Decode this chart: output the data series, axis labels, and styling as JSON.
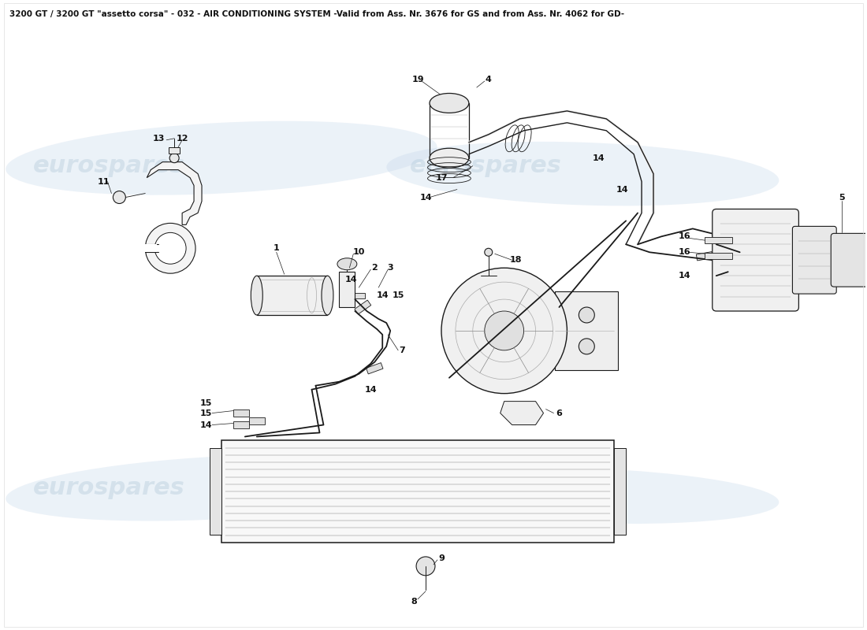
{
  "title": "3200 GT / 3200 GT \"assetto corsa\" - 032 - AIR CONDITIONING SYSTEM -Valid from Ass. Nr. 3676 for GS and from Ass. Nr. 4062 for GD-",
  "title_fontsize": 7.5,
  "background_color": "#ffffff",
  "watermark_text": "eurospares",
  "watermark_color": "#b8cedd",
  "watermark_alpha": 0.45,
  "line_color": "#1a1a1a",
  "label_color": "#111111",
  "fig_width": 11.0,
  "fig_height": 8.0,
  "dpi": 100
}
